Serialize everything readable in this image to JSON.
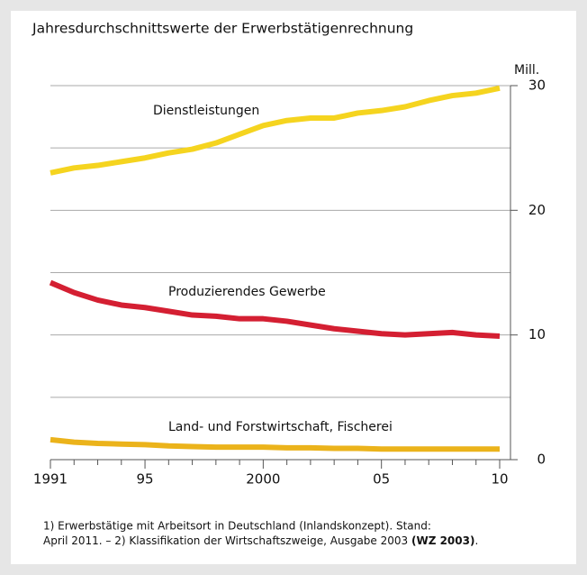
{
  "chart_data": {
    "type": "line",
    "title": "Jahresdurchschnittswerte der Erwerbstätigenrechnung",
    "y_unit": "Mill.",
    "x": [
      1991,
      1992,
      1993,
      1994,
      1995,
      1996,
      1997,
      1998,
      1999,
      2000,
      2001,
      2002,
      2003,
      2004,
      2005,
      2006,
      2007,
      2008,
      2009,
      2010
    ],
    "series": [
      {
        "name": "Dienstleistungen",
        "color": "#f5d41f",
        "values": [
          23.0,
          23.4,
          23.6,
          23.9,
          24.2,
          24.6,
          24.9,
          25.4,
          26.1,
          26.8,
          27.2,
          27.4,
          27.4,
          27.8,
          28.0,
          28.3,
          28.8,
          29.2,
          29.4,
          29.8
        ]
      },
      {
        "name": "Produzierendes Gewerbe",
        "color": "#d41f32",
        "values": [
          14.2,
          13.4,
          12.8,
          12.4,
          12.2,
          11.9,
          11.6,
          11.5,
          11.3,
          11.3,
          11.1,
          10.8,
          10.5,
          10.3,
          10.1,
          10.0,
          10.1,
          10.2,
          10.0,
          9.9
        ]
      },
      {
        "name": "Land- und Forstwirtschaft, Fischerei",
        "color": "#ebb31b",
        "values": [
          1.6,
          1.4,
          1.3,
          1.25,
          1.2,
          1.1,
          1.05,
          1.0,
          1.0,
          1.0,
          0.95,
          0.95,
          0.9,
          0.9,
          0.85,
          0.85,
          0.85,
          0.85,
          0.85,
          0.85
        ]
      }
    ],
    "xlim": [
      1991,
      2010
    ],
    "xticks": [
      1991,
      {
        "value": 1995,
        "label": "95"
      },
      2000,
      {
        "value": 2005,
        "label": "05"
      },
      {
        "value": 2010,
        "label": "10"
      }
    ],
    "minor_xticks": [
      1992,
      1993,
      1994,
      1996,
      1997,
      1998,
      1999,
      2001,
      2002,
      2003,
      2004,
      2006,
      2007,
      2008,
      2009
    ],
    "ylim": [
      0,
      30
    ],
    "yticks": [
      0,
      10,
      20,
      30
    ],
    "minor_yticks": [
      5,
      15,
      25
    ],
    "grid": true,
    "footnote": [
      "1) Erwerbstätige mit Arbeitsort in Deutschland (Inlandskonzept). Stand:",
      "April 2011. – 2) Klassifikation der Wirtschaftszweige, Ausgabe 2003 ",
      "(WZ 2003)",
      "."
    ]
  }
}
